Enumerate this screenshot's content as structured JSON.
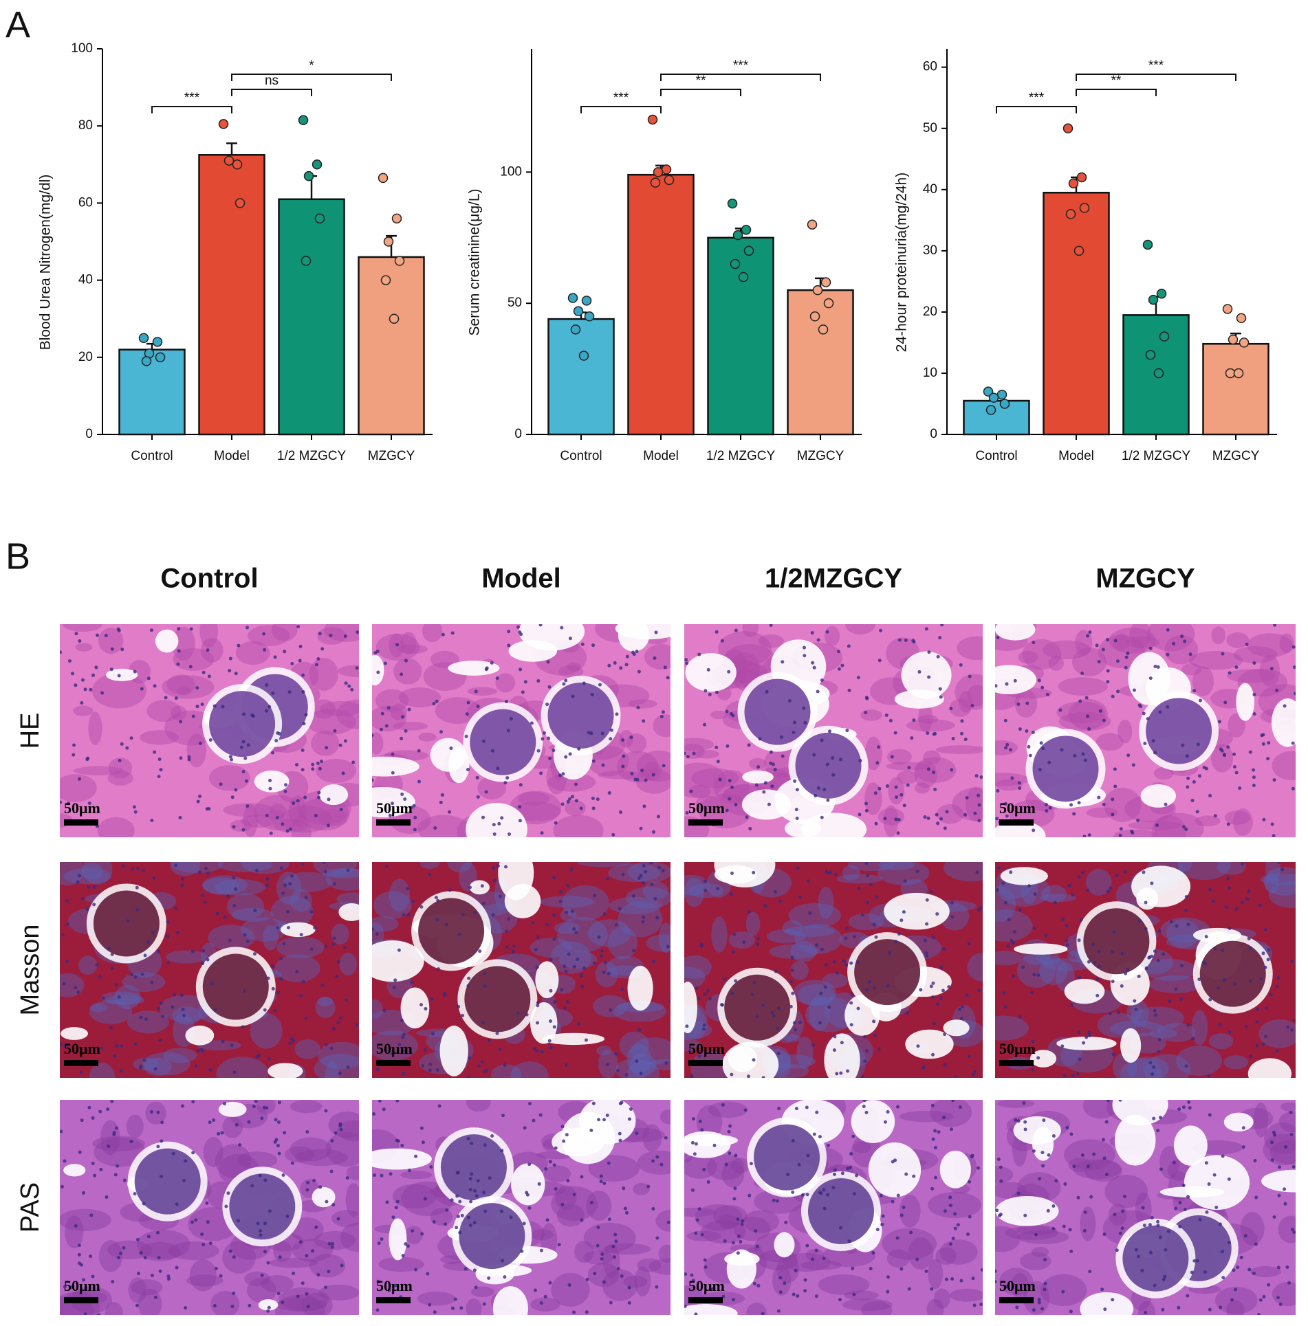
{
  "panel_labels": [
    "A",
    "B"
  ],
  "chart_data": [
    {
      "type": "bar",
      "ylabel": "Blood Urea Nitrogen(mg/dl)",
      "categories": [
        "Control",
        "Model",
        "1/2 MZGCY",
        "MZGCY"
      ],
      "values": [
        22,
        72.5,
        61,
        46
      ],
      "errors": [
        1.5,
        3,
        6,
        5.5
      ],
      "points": [
        [
          25,
          24,
          21,
          20,
          19
        ],
        [
          80.5,
          70,
          71,
          60
        ],
        [
          81.5,
          70,
          67,
          56,
          45
        ],
        [
          66.5,
          56,
          50,
          45,
          40,
          30
        ]
      ],
      "colors": [
        "#4bb6d3",
        "#e34a33",
        "#0e9474",
        "#f0a07f"
      ],
      "point_colors": [
        "#3aa7c4",
        "#e5533a",
        "#16957a",
        "#f2a582"
      ],
      "ylim": [
        0,
        100
      ],
      "yticks": [
        0,
        20,
        40,
        60,
        80,
        100
      ],
      "significance": [
        {
          "from": 0,
          "to": 1,
          "label": "***"
        },
        {
          "from": 1,
          "to": 2,
          "label": "ns"
        },
        {
          "from": 1,
          "to": 3,
          "label": "*"
        }
      ]
    },
    {
      "type": "bar",
      "ylabel": "Serum creatinine(μg/L)",
      "categories": [
        "Control",
        "Model",
        "1/2 MZGCY",
        "MZGCY"
      ],
      "values": [
        44,
        99,
        75,
        55
      ],
      "errors": [
        2.5,
        3.5,
        3.5,
        4.5
      ],
      "points": [
        [
          52,
          51,
          47,
          45,
          40,
          30
        ],
        [
          120,
          101,
          100,
          97,
          96
        ],
        [
          88,
          78,
          76,
          70,
          65,
          60
        ],
        [
          80,
          58,
          55,
          50,
          45,
          40
        ]
      ],
      "colors": [
        "#4bb6d3",
        "#e34a33",
        "#0e9474",
        "#f0a07f"
      ],
      "point_colors": [
        "#3aa7c4",
        "#e5533a",
        "#16957a",
        "#f2a582"
      ],
      "ylim": [
        0,
        147
      ],
      "yticks": [
        0,
        50,
        100
      ],
      "significance": [
        {
          "from": 0,
          "to": 1,
          "label": "***"
        },
        {
          "from": 1,
          "to": 2,
          "label": "**"
        },
        {
          "from": 1,
          "to": 3,
          "label": "***"
        }
      ]
    },
    {
      "type": "bar",
      "ylabel": "24-hour proteinuria(mg/24h)",
      "categories": [
        "Control",
        "Model",
        "1/2 MZGCY",
        "MZGCY"
      ],
      "values": [
        5.5,
        39.5,
        19.5,
        14.8
      ],
      "errors": [
        0.7,
        2.5,
        3,
        1.7
      ],
      "points": [
        [
          7,
          6.5,
          6,
          5,
          4
        ],
        [
          50,
          42,
          41,
          37,
          36,
          30
        ],
        [
          31,
          23,
          22,
          16,
          13,
          10
        ],
        [
          20.5,
          19,
          15.5,
          15,
          10,
          10
        ]
      ],
      "colors": [
        "#4bb6d3",
        "#e34a33",
        "#0e9474",
        "#f0a07f"
      ],
      "point_colors": [
        "#3aa7c4",
        "#e5533a",
        "#16957a",
        "#f2a582"
      ],
      "ylim": [
        0,
        63
      ],
      "yticks": [
        0,
        10,
        20,
        30,
        40,
        50,
        60
      ],
      "significance": [
        {
          "from": 0,
          "to": 1,
          "label": "***"
        },
        {
          "from": 1,
          "to": 2,
          "label": "**"
        },
        {
          "from": 1,
          "to": 3,
          "label": "***"
        }
      ]
    }
  ],
  "histology": {
    "columns": [
      "Control",
      "Model",
      "1/2MZGCY",
      "MZGCY"
    ],
    "rows": [
      "HE",
      "Masson",
      "PAS"
    ],
    "scale_bar": "50μm"
  }
}
